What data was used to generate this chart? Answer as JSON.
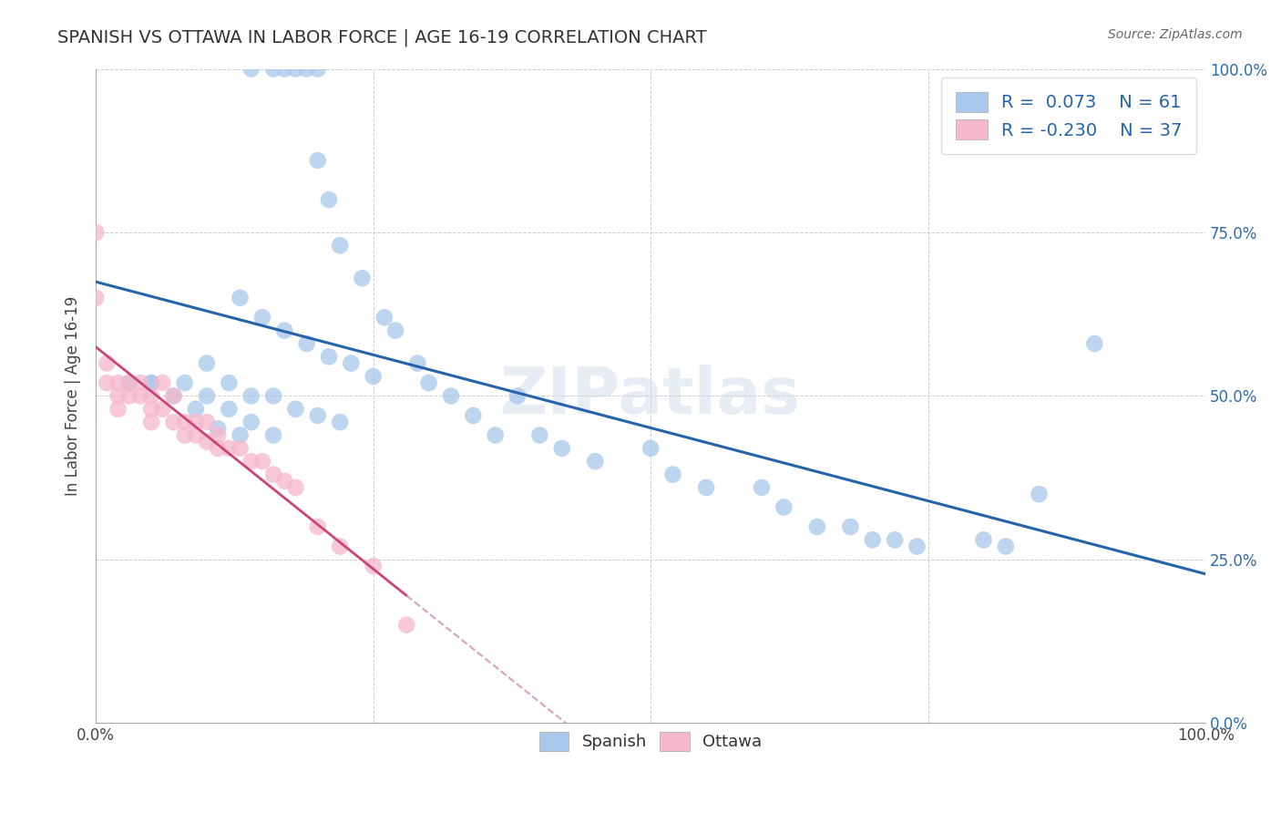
{
  "title": "SPANISH VS OTTAWA IN LABOR FORCE | AGE 16-19 CORRELATION CHART",
  "source_text": "Source: ZipAtlas.com",
  "ylabel": "In Labor Force | Age 16-19",
  "xlim": [
    0.0,
    1.0
  ],
  "ylim": [
    0.0,
    1.0
  ],
  "xticks": [
    0.0,
    0.25,
    0.5,
    0.75,
    1.0
  ],
  "yticks": [
    0.0,
    0.25,
    0.5,
    0.75,
    1.0
  ],
  "xtick_labels": [
    "0.0%",
    "",
    "",
    "",
    "100.0%"
  ],
  "ytick_labels_right": [
    "0.0%",
    "25.0%",
    "50.0%",
    "75.0%",
    "100.0%"
  ],
  "blue_R": 0.073,
  "blue_N": 61,
  "pink_R": -0.23,
  "pink_N": 37,
  "blue_color": "#A8C8EC",
  "pink_color": "#F5B8CC",
  "blue_line_color": "#2563AA",
  "pink_line_color": "#CC4477",
  "pink_dash_color": "#DDA0BB",
  "background_color": "#FFFFFF",
  "grid_color": "#C8C8D0",
  "watermark": "ZIPatlas",
  "legend_label_blue": "Spanish",
  "legend_label_pink": "Ottawa",
  "blue_x": [
    0.14,
    0.16,
    0.17,
    0.18,
    0.19,
    0.2,
    0.2,
    0.21,
    0.22,
    0.24,
    0.26,
    0.13,
    0.15,
    0.17,
    0.19,
    0.21,
    0.23,
    0.25,
    0.1,
    0.12,
    0.14,
    0.16,
    0.18,
    0.2,
    0.22,
    0.08,
    0.1,
    0.12,
    0.14,
    0.16,
    0.05,
    0.07,
    0.09,
    0.11,
    0.13,
    0.27,
    0.29,
    0.3,
    0.32,
    0.34,
    0.36,
    0.38,
    0.4,
    0.42,
    0.45,
    0.5,
    0.52,
    0.55,
    0.6,
    0.62,
    0.65,
    0.68,
    0.7,
    0.72,
    0.74,
    0.8,
    0.82,
    0.85,
    0.9,
    0.03,
    0.05
  ],
  "blue_y": [
    1.0,
    1.0,
    1.0,
    1.0,
    1.0,
    1.0,
    0.86,
    0.8,
    0.73,
    0.68,
    0.62,
    0.65,
    0.62,
    0.6,
    0.58,
    0.56,
    0.55,
    0.53,
    0.55,
    0.52,
    0.5,
    0.5,
    0.48,
    0.47,
    0.46,
    0.52,
    0.5,
    0.48,
    0.46,
    0.44,
    0.52,
    0.5,
    0.48,
    0.45,
    0.44,
    0.6,
    0.55,
    0.52,
    0.5,
    0.47,
    0.44,
    0.5,
    0.44,
    0.42,
    0.4,
    0.42,
    0.38,
    0.36,
    0.36,
    0.33,
    0.3,
    0.3,
    0.28,
    0.28,
    0.27,
    0.28,
    0.27,
    0.35,
    0.58,
    0.52,
    0.52
  ],
  "pink_x": [
    0.0,
    0.0,
    0.01,
    0.01,
    0.02,
    0.02,
    0.02,
    0.03,
    0.03,
    0.04,
    0.04,
    0.05,
    0.05,
    0.05,
    0.06,
    0.06,
    0.07,
    0.07,
    0.08,
    0.08,
    0.09,
    0.09,
    0.1,
    0.1,
    0.11,
    0.11,
    0.12,
    0.13,
    0.14,
    0.15,
    0.16,
    0.17,
    0.18,
    0.2,
    0.22,
    0.25,
    0.28
  ],
  "pink_y": [
    0.75,
    0.65,
    0.55,
    0.52,
    0.52,
    0.5,
    0.48,
    0.52,
    0.5,
    0.52,
    0.5,
    0.5,
    0.48,
    0.46,
    0.52,
    0.48,
    0.5,
    0.46,
    0.46,
    0.44,
    0.46,
    0.44,
    0.46,
    0.43,
    0.44,
    0.42,
    0.42,
    0.42,
    0.4,
    0.4,
    0.38,
    0.37,
    0.36,
    0.3,
    0.27,
    0.24,
    0.15
  ]
}
